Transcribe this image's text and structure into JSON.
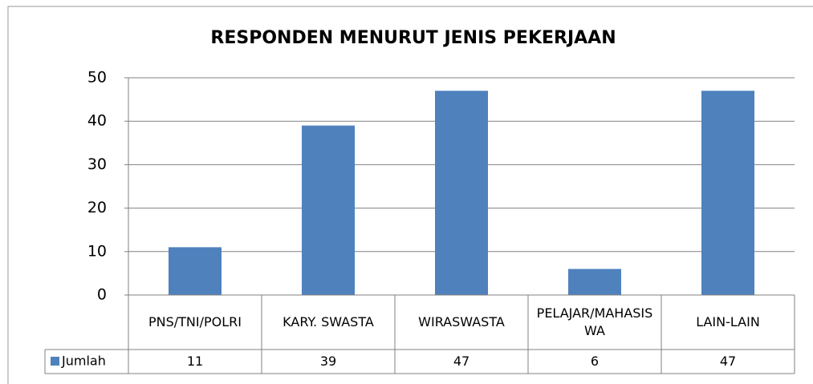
{
  "chart_data": {
    "type": "bar",
    "title": "RESPONDEN MENURUT JENIS PEKERJAAN",
    "categories": [
      "PNS/TNI/POLRI",
      "KARY. SWASTA",
      "WIRASWASTA",
      "PELAJAR/MAHASISWA",
      "LAIN-LAIN"
    ],
    "series": [
      {
        "name": "Jumlah",
        "color": "#4f81bd",
        "values": [
          11,
          39,
          47,
          6,
          47
        ]
      }
    ],
    "ylim": [
      0,
      50
    ],
    "yticks": [
      0,
      10,
      20,
      30,
      40,
      50
    ],
    "grid": true,
    "data_table": true
  }
}
